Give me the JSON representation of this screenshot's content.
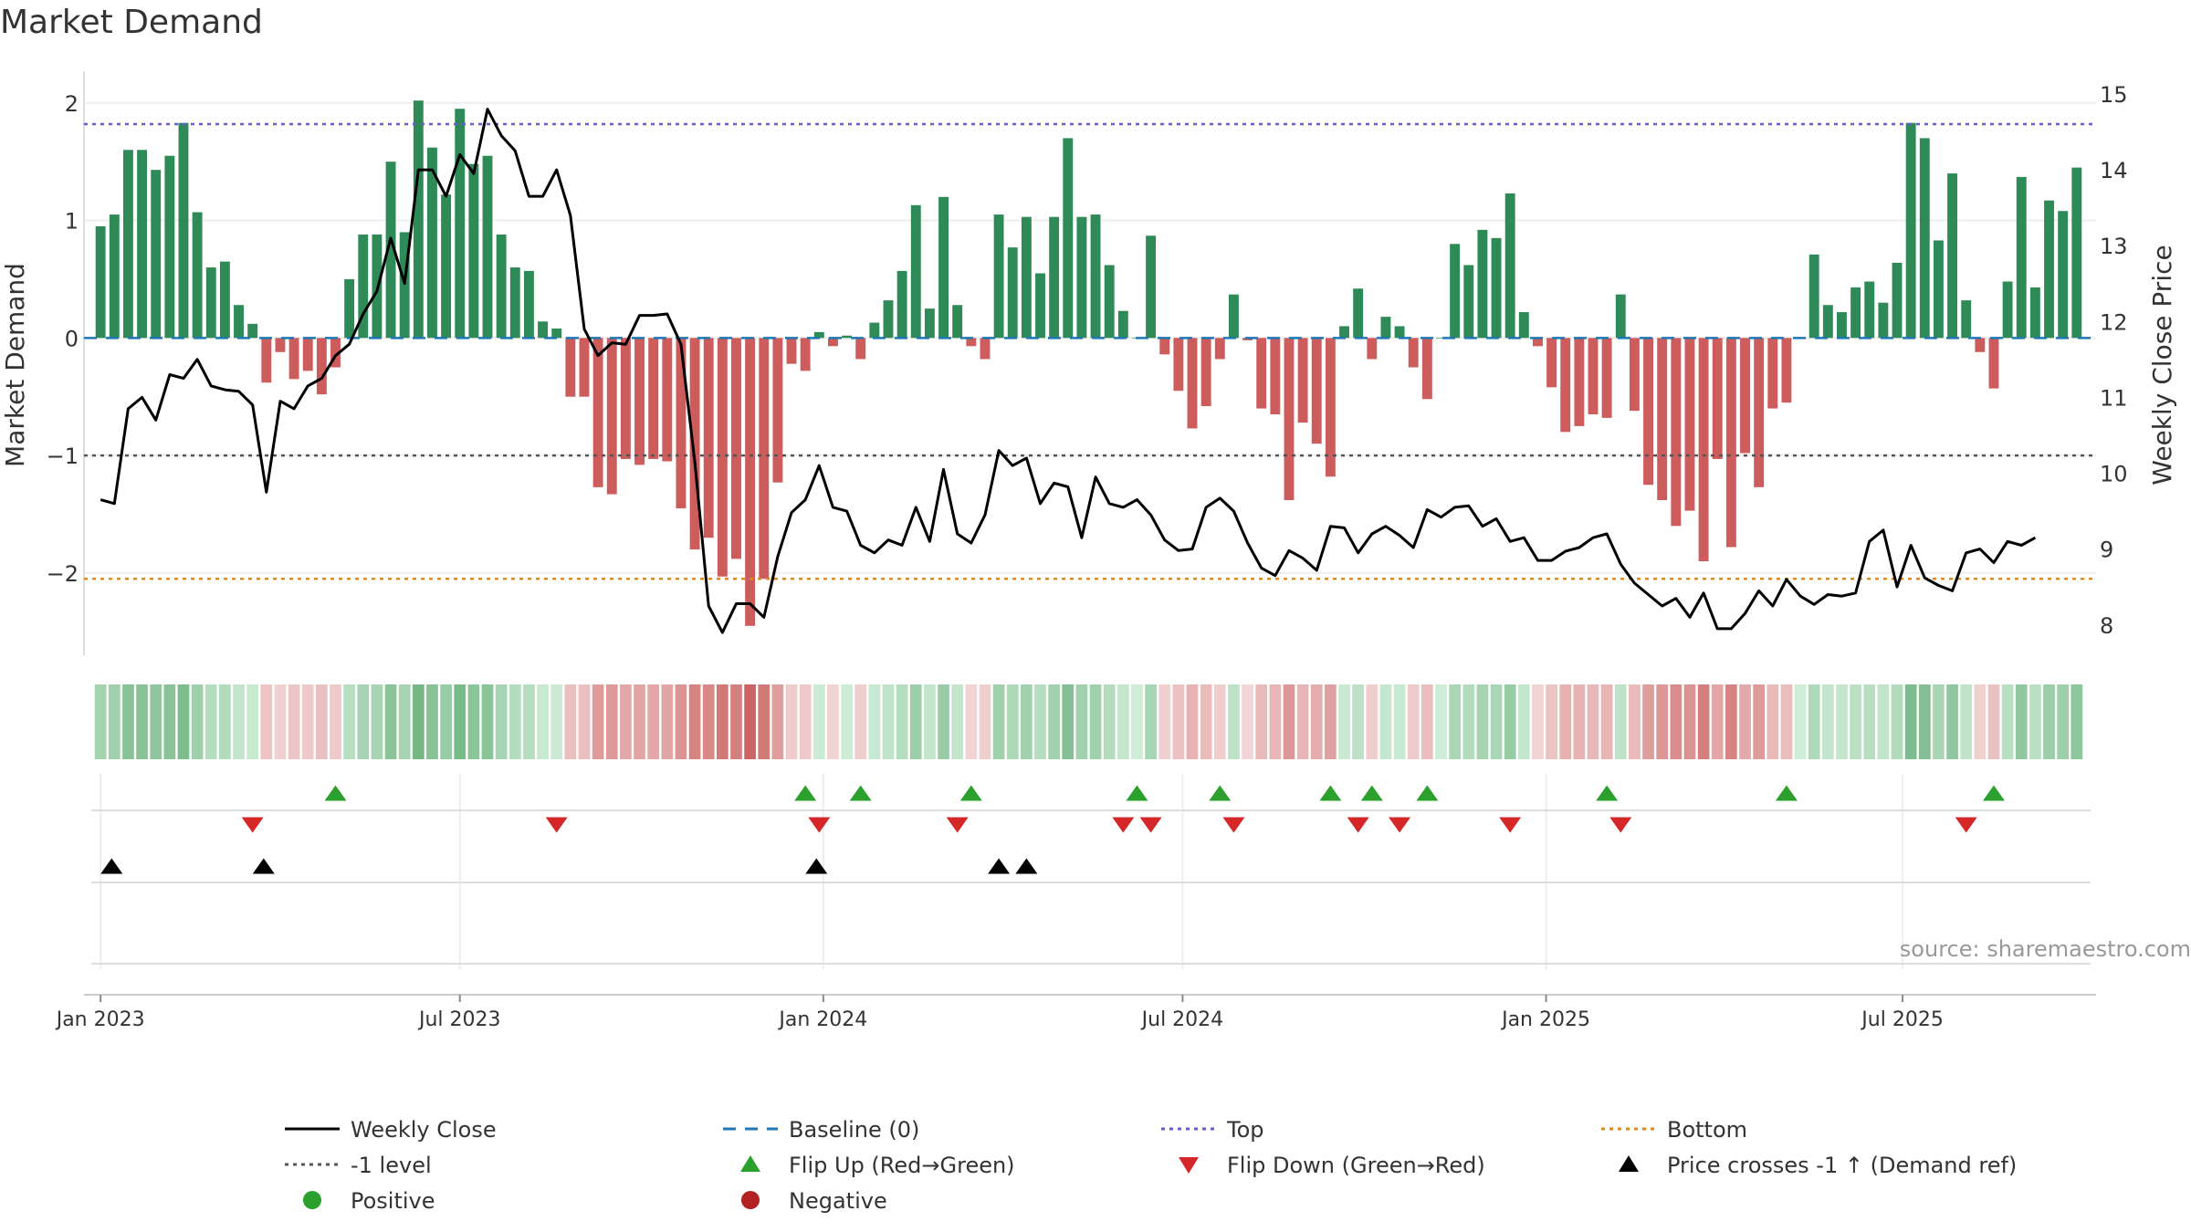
{
  "chart_data": {
    "type": "bar+line",
    "title": "Market Demand",
    "ylabel_left": "Market Demand",
    "ylabel_right": "Weekly Close Price",
    "ylim_left": [
      -2.7,
      2.27
    ],
    "ylim_right": [
      7.6,
      15.3
    ],
    "yticks_left": [
      {
        "v": 2,
        "label": "2"
      },
      {
        "v": 1,
        "label": "1"
      },
      {
        "v": 0,
        "label": "0"
      },
      {
        "v": -1,
        "label": "−1"
      },
      {
        "v": -2,
        "label": "−2"
      }
    ],
    "yticks_right": [
      {
        "v": 15,
        "label": "15"
      },
      {
        "v": 14,
        "label": "14"
      },
      {
        "v": 13,
        "label": "13"
      },
      {
        "v": 12,
        "label": "12"
      },
      {
        "v": 11,
        "label": "11"
      },
      {
        "v": 10,
        "label": "10"
      },
      {
        "v": 9,
        "label": "9"
      },
      {
        "v": 8,
        "label": "8"
      }
    ],
    "xlim_weeks": [
      -1.2,
      144.4
    ],
    "xticks": [
      {
        "week": 0,
        "label": "Jan 2023"
      },
      {
        "week": 26,
        "label": "Jul 2023"
      },
      {
        "week": 52.3,
        "label": "Jan 2024"
      },
      {
        "week": 78.3,
        "label": "Jul 2024"
      },
      {
        "week": 104.6,
        "label": "Jan 2025"
      },
      {
        "week": 130.4,
        "label": "Jul 2025"
      }
    ],
    "levels": {
      "top": 1.82,
      "bottom": -2.05,
      "minus_one": -1,
      "baseline": 0
    },
    "demand": [
      0.95,
      1.05,
      1.6,
      1.6,
      1.43,
      1.55,
      1.83,
      1.07,
      0.6,
      0.65,
      0.28,
      0.12,
      -0.38,
      -0.12,
      -0.35,
      -0.28,
      -0.48,
      -0.25,
      0.5,
      0.88,
      0.88,
      1.5,
      0.9,
      2.02,
      1.62,
      1.22,
      1.95,
      1.48,
      1.55,
      0.88,
      0.6,
      0.57,
      0.14,
      0.08,
      -0.5,
      -0.5,
      -1.27,
      -1.33,
      -1.03,
      -1.08,
      -1.03,
      -1.05,
      -1.45,
      -1.8,
      -1.7,
      -2.03,
      -1.88,
      -2.45,
      -2.05,
      -1.23,
      -0.22,
      -0.28,
      0.05,
      -0.07,
      0.02,
      -0.18,
      0.13,
      0.32,
      0.57,
      1.13,
      0.25,
      1.2,
      0.28,
      -0.07,
      -0.18,
      1.05,
      0.77,
      1.03,
      0.55,
      1.03,
      1.7,
      1.03,
      1.05,
      0.62,
      0.23,
      0.0,
      0.87,
      -0.14,
      -0.45,
      -0.77,
      -0.58,
      -0.18,
      0.37,
      -0.02,
      -0.6,
      -0.65,
      -1.38,
      -0.72,
      -0.9,
      -1.18,
      0.1,
      0.42,
      -0.18,
      0.18,
      0.1,
      -0.25,
      -0.52,
      0.0,
      0.8,
      0.62,
      0.92,
      0.85,
      1.23,
      0.22,
      -0.07,
      -0.42,
      -0.8,
      -0.75,
      -0.65,
      -0.68,
      0.37,
      -0.62,
      -1.25,
      -1.38,
      -1.6,
      -1.47,
      -1.9,
      -1.03,
      -1.78,
      -0.98,
      -1.27,
      -0.6,
      -0.55,
      0.0,
      0.71,
      0.28,
      0.22,
      0.43,
      0.48,
      0.3,
      0.64,
      1.83,
      1.7,
      0.83,
      1.4,
      0.32,
      -0.12,
      -0.43,
      0.48,
      1.37,
      0.43,
      1.17,
      1.08,
      1.45
    ],
    "close": [
      9.65,
      9.6,
      10.85,
      11.0,
      10.7,
      11.3,
      11.25,
      11.5,
      11.15,
      11.1,
      11.08,
      10.9,
      9.75,
      10.95,
      10.85,
      11.15,
      11.25,
      11.55,
      11.7,
      12.1,
      12.4,
      13.1,
      12.5,
      14.0,
      14.0,
      13.65,
      14.2,
      13.95,
      14.8,
      14.45,
      14.25,
      13.65,
      13.65,
      14.0,
      13.4,
      11.9,
      11.55,
      11.72,
      11.7,
      12.08,
      12.08,
      12.1,
      11.7,
      10.15,
      8.25,
      7.9,
      8.28,
      8.28,
      8.1,
      8.9,
      9.48,
      9.65,
      10.1,
      9.55,
      9.5,
      9.05,
      8.95,
      9.12,
      9.05,
      9.55,
      9.1,
      10.05,
      9.2,
      9.08,
      9.45,
      10.3,
      10.1,
      10.2,
      9.6,
      9.87,
      9.82,
      9.15,
      9.95,
      9.6,
      9.55,
      9.65,
      9.45,
      9.12,
      8.98,
      9.0,
      9.55,
      9.67,
      9.5,
      9.08,
      8.75,
      8.65,
      8.98,
      8.88,
      8.72,
      9.3,
      9.28,
      8.95,
      9.2,
      9.3,
      9.18,
      9.02,
      9.52,
      9.42,
      9.55,
      9.57,
      9.3,
      9.4,
      9.1,
      9.15,
      8.85,
      8.85,
      8.97,
      9.02,
      9.15,
      9.2,
      8.8,
      8.55,
      8.4,
      8.25,
      8.35,
      8.1,
      8.42,
      7.95,
      7.95,
      8.15,
      8.45,
      8.25,
      8.6,
      8.38,
      8.27,
      8.4,
      8.38,
      8.42,
      9.1,
      9.25,
      8.5,
      9.05,
      8.62,
      8.52,
      8.45,
      8.95,
      9.0,
      8.82,
      9.1,
      9.05,
      9.15
    ],
    "flip_up_weeks": [
      17,
      51,
      55,
      63,
      75,
      81,
      89,
      92,
      96,
      109,
      122,
      137
    ],
    "flip_down_weeks": [
      11,
      33,
      52,
      62,
      74,
      76,
      82,
      91,
      94,
      102,
      110,
      135
    ],
    "cross_weeks": [
      0.8,
      11.8,
      51.8,
      65,
      67
    ],
    "source_text": "source: sharemaestro.com",
    "legend": [
      {
        "label": "Weekly Close",
        "kind": "line",
        "color": "#000000"
      },
      {
        "label": "Baseline (0)",
        "kind": "dash",
        "color": "#1f77b4"
      },
      {
        "label": "Top",
        "kind": "dot",
        "color": "#6a5acd"
      },
      {
        "label": "Bottom",
        "kind": "dot",
        "color": "#e08a1e"
      },
      {
        "label": "-1 level",
        "kind": "dot",
        "color": "#555555"
      },
      {
        "label": "Flip Up (Red→Green)",
        "kind": "tri-up",
        "color": "#2ca02c"
      },
      {
        "label": "Flip Down (Green→Red)",
        "kind": "tri-down",
        "color": "#d62728"
      },
      {
        "label": "Price crosses -1 ↑ (Demand ref)",
        "kind": "tri-up",
        "color": "#000000"
      },
      {
        "label": "Positive",
        "kind": "circle",
        "color": "#2ca02c"
      },
      {
        "label": "Negative",
        "kind": "circle",
        "color": "#b22222"
      }
    ],
    "colors": {
      "positive": "#2e8b57",
      "negative": "#cd5c5c",
      "close": "#000000"
    }
  }
}
